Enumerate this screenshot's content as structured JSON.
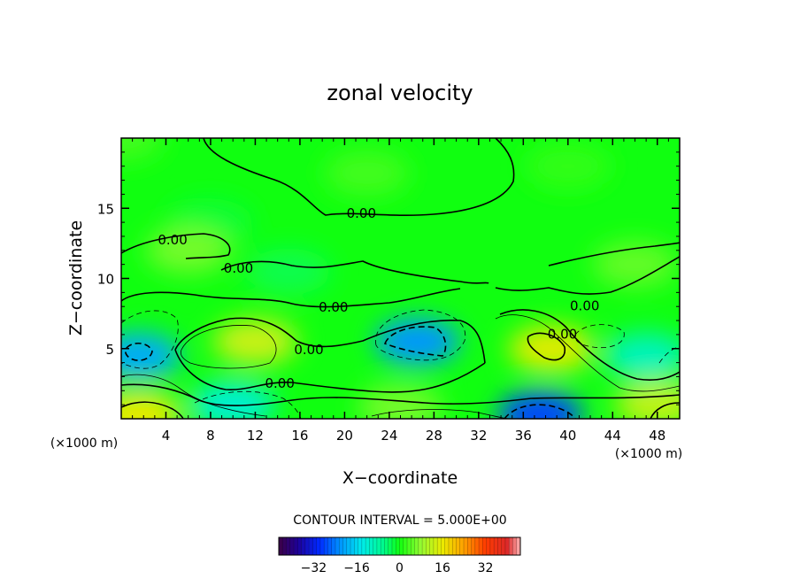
{
  "chart_data": {
    "type": "heatmap",
    "title": "zonal velocity",
    "xlabel": "X−coordinate",
    "ylabel": "Z−coordinate",
    "x_unit_left": "(×1000 m)",
    "x_unit_right": "(×1000 m)",
    "x_ticks": [
      4,
      8,
      12,
      16,
      20,
      24,
      28,
      32,
      36,
      40,
      44,
      48
    ],
    "y_ticks": [
      5,
      10,
      15
    ],
    "xlim": [
      0,
      50
    ],
    "ylim": [
      0,
      20
    ],
    "contour_interval_text": "CONTOUR INTERVAL = 5.000E+00",
    "colorbar": {
      "range": [
        -45,
        45
      ],
      "tick_values": [
        -32,
        -16,
        0,
        16,
        32
      ],
      "tick_labels": [
        "−32",
        "−16",
        "0",
        "16",
        "32"
      ]
    },
    "contour_labels": [
      {
        "text": "0.00",
        "x": 21.5,
        "y": 14.7
      },
      {
        "text": "0.00",
        "x": 4.6,
        "y": 12.8
      },
      {
        "text": "0.00",
        "x": 10.5,
        "y": 10.8
      },
      {
        "text": "0.00",
        "x": 19.0,
        "y": 8.0
      },
      {
        "text": "0.00",
        "x": 41.5,
        "y": 8.1
      },
      {
        "text": "0.00",
        "x": 39.5,
        "y": 6.1
      },
      {
        "text": "0.00",
        "x": 16.8,
        "y": 5.0
      },
      {
        "text": "0.00",
        "x": 14.2,
        "y": 2.6
      }
    ],
    "field_features": [
      {
        "x": 0.0,
        "y": 20.0,
        "value": 3
      },
      {
        "x": 22.0,
        "y": 17.5,
        "value": 3
      },
      {
        "x": 40.0,
        "y": 18.0,
        "value": 2
      },
      {
        "x": 8.0,
        "y": 14.0,
        "value": -2
      },
      {
        "x": 6.0,
        "y": 12.0,
        "value": 6
      },
      {
        "x": 15.0,
        "y": 10.5,
        "value": -3
      },
      {
        "x": 46.0,
        "y": 11.0,
        "value": 5
      },
      {
        "x": 1.5,
        "y": 4.5,
        "value": -20
      },
      {
        "x": 12.0,
        "y": 5.5,
        "value": 13
      },
      {
        "x": 26.5,
        "y": 5.5,
        "value": -22
      },
      {
        "x": 38.5,
        "y": 5.0,
        "value": 15
      },
      {
        "x": 47.0,
        "y": 4.5,
        "value": -10
      },
      {
        "x": 10.0,
        "y": 1.0,
        "value": -12
      },
      {
        "x": 1.5,
        "y": 0.3,
        "value": 16
      },
      {
        "x": 25.0,
        "y": 0.8,
        "value": 6
      },
      {
        "x": 37.5,
        "y": 0.3,
        "value": -28
      },
      {
        "x": 48.0,
        "y": 1.0,
        "value": 12
      }
    ]
  }
}
